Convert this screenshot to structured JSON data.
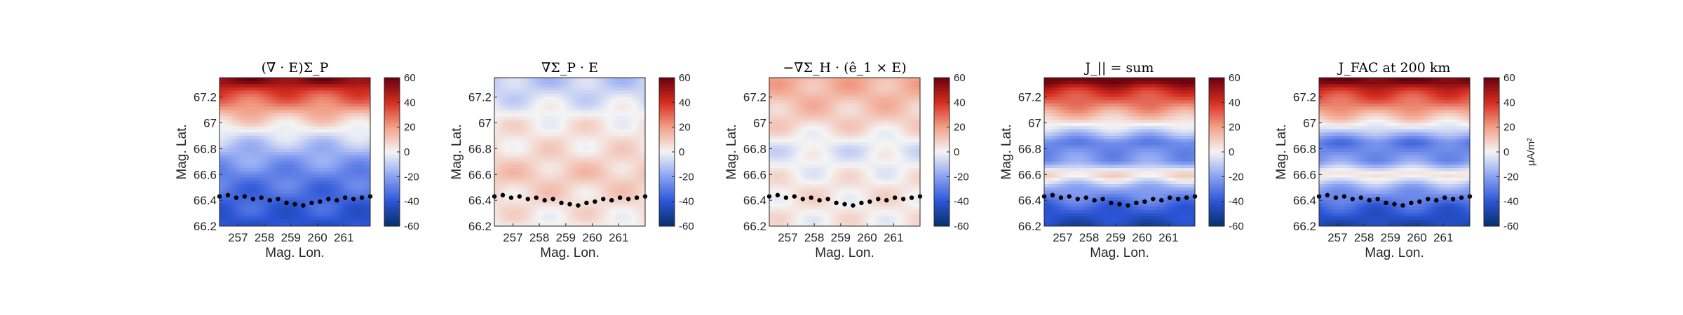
{
  "figure": {
    "colorbar_unit": "μA/m²",
    "colormap": [
      "#08306b",
      "#2c55d6",
      "#8aa2f2",
      "#f4f4f4",
      "#f2a088",
      "#d62d20",
      "#67000d"
    ]
  },
  "chart_data": [
    {
      "type": "heatmap",
      "title": "(∇ · E)Σ_P",
      "xlabel": "Mag. Lon.",
      "ylabel": "Mag. Lat.",
      "xlim": [
        256.3,
        262.0
      ],
      "ylim": [
        66.2,
        67.35
      ],
      "x_ticks": [
        257,
        258,
        259,
        260,
        261
      ],
      "y_ticks": [
        66.2,
        66.4,
        66.6,
        66.8,
        67,
        67.2
      ],
      "colorbar_ticks": [
        60,
        40,
        20,
        0,
        -20,
        -40,
        -60
      ],
      "clim": [
        -60,
        60
      ],
      "lat_profile": [
        [
          66.2,
          -42
        ],
        [
          66.4,
          -36
        ],
        [
          66.6,
          -28
        ],
        [
          66.75,
          -18
        ],
        [
          66.85,
          -10
        ],
        [
          66.95,
          0
        ],
        [
          67.05,
          12
        ],
        [
          67.15,
          26
        ],
        [
          67.25,
          38
        ],
        [
          67.32,
          55
        ]
      ],
      "boundary": {
        "color": "#000000",
        "lat": [
          66.43,
          66.44,
          66.42,
          66.43,
          66.41,
          66.42,
          66.4,
          66.41,
          66.38,
          66.37,
          66.36,
          66.38,
          66.39,
          66.41,
          66.4,
          66.42,
          66.41,
          66.42,
          66.43
        ]
      }
    },
    {
      "type": "heatmap",
      "title": "∇Σ_P · E",
      "xlabel": "Mag. Lon.",
      "ylabel": "Mag. Lat.",
      "xlim": [
        256.3,
        262.0
      ],
      "ylim": [
        66.2,
        67.35
      ],
      "x_ticks": [
        257,
        258,
        259,
        260,
        261
      ],
      "y_ticks": [
        66.2,
        66.4,
        66.6,
        66.8,
        67,
        67.2
      ],
      "colorbar_ticks": [
        60,
        40,
        20,
        0,
        -20,
        -40,
        -60
      ],
      "clim": [
        -60,
        60
      ],
      "lat_profile": [
        [
          66.2,
          2
        ],
        [
          66.4,
          6
        ],
        [
          66.6,
          10
        ],
        [
          66.8,
          5
        ],
        [
          67.0,
          3
        ],
        [
          67.2,
          -6
        ],
        [
          67.32,
          -10
        ]
      ],
      "boundary": {
        "color": "#000000",
        "lat": [
          66.43,
          66.44,
          66.42,
          66.43,
          66.41,
          66.42,
          66.4,
          66.41,
          66.38,
          66.37,
          66.36,
          66.38,
          66.39,
          66.41,
          66.4,
          66.42,
          66.41,
          66.42,
          66.43
        ]
      }
    },
    {
      "type": "heatmap",
      "title": "−∇Σ_H · (ê_1 × E)",
      "xlabel": "Mag. Lon.",
      "ylabel": "Mag. Lat.",
      "xlim": [
        256.3,
        262.0
      ],
      "ylim": [
        66.2,
        67.35
      ],
      "x_ticks": [
        257,
        258,
        259,
        260,
        261
      ],
      "y_ticks": [
        66.2,
        66.4,
        66.6,
        66.8,
        67,
        67.2
      ],
      "colorbar_ticks": [
        60,
        40,
        20,
        0,
        -20,
        -40,
        -60
      ],
      "clim": [
        -60,
        60
      ],
      "lat_profile": [
        [
          66.2,
          2
        ],
        [
          66.5,
          4
        ],
        [
          66.8,
          -4
        ],
        [
          67.0,
          8
        ],
        [
          67.2,
          14
        ],
        [
          67.32,
          16
        ]
      ],
      "boundary": {
        "color": "#000000",
        "lat": [
          66.43,
          66.44,
          66.42,
          66.43,
          66.41,
          66.42,
          66.4,
          66.41,
          66.38,
          66.37,
          66.36,
          66.38,
          66.39,
          66.41,
          66.4,
          66.42,
          66.41,
          66.42,
          66.43
        ]
      }
    },
    {
      "type": "heatmap",
      "title": "J_|| = sum",
      "xlabel": "Mag. Lon.",
      "ylabel": "Mag. Lat.",
      "xlim": [
        256.3,
        262.0
      ],
      "ylim": [
        66.2,
        67.35
      ],
      "x_ticks": [
        257,
        258,
        259,
        260,
        261
      ],
      "y_ticks": [
        66.2,
        66.4,
        66.6,
        66.8,
        67,
        67.2
      ],
      "colorbar_ticks": [
        60,
        40,
        20,
        0,
        -20,
        -40,
        -60
      ],
      "clim": [
        -60,
        60
      ],
      "lat_profile": [
        [
          66.2,
          -48
        ],
        [
          66.35,
          -36
        ],
        [
          66.5,
          -18
        ],
        [
          66.6,
          8
        ],
        [
          66.7,
          -22
        ],
        [
          66.85,
          -28
        ],
        [
          66.95,
          -6
        ],
        [
          67.05,
          12
        ],
        [
          67.15,
          28
        ],
        [
          67.25,
          40
        ],
        [
          67.32,
          58
        ]
      ],
      "boundary": {
        "color": "#000000",
        "lat": [
          66.43,
          66.44,
          66.42,
          66.43,
          66.41,
          66.42,
          66.4,
          66.41,
          66.38,
          66.37,
          66.36,
          66.38,
          66.39,
          66.41,
          66.4,
          66.42,
          66.41,
          66.42,
          66.43
        ]
      }
    },
    {
      "type": "heatmap",
      "title": "J_FAC at 200 km",
      "xlabel": "Mag. Lon.",
      "ylabel": "Mag. Lat.",
      "xlim": [
        256.3,
        262.0
      ],
      "ylim": [
        66.2,
        67.35
      ],
      "x_ticks": [
        257,
        258,
        259,
        260,
        261
      ],
      "y_ticks": [
        66.2,
        66.4,
        66.6,
        66.8,
        67,
        67.2
      ],
      "colorbar_ticks": [
        60,
        40,
        20,
        0,
        -20,
        -40,
        -60
      ],
      "colorbar_label": "μA/m²",
      "clim": [
        -60,
        60
      ],
      "lat_profile": [
        [
          66.2,
          -48
        ],
        [
          66.35,
          -36
        ],
        [
          66.5,
          -18
        ],
        [
          66.6,
          6
        ],
        [
          66.7,
          -22
        ],
        [
          66.85,
          -30
        ],
        [
          66.95,
          -6
        ],
        [
          67.05,
          12
        ],
        [
          67.15,
          28
        ],
        [
          67.25,
          40
        ],
        [
          67.32,
          58
        ]
      ],
      "boundary": {
        "color": "#000000",
        "lat": [
          66.43,
          66.44,
          66.42,
          66.43,
          66.41,
          66.42,
          66.4,
          66.41,
          66.38,
          66.37,
          66.36,
          66.38,
          66.39,
          66.41,
          66.4,
          66.42,
          66.41,
          66.42,
          66.43
        ]
      }
    }
  ]
}
